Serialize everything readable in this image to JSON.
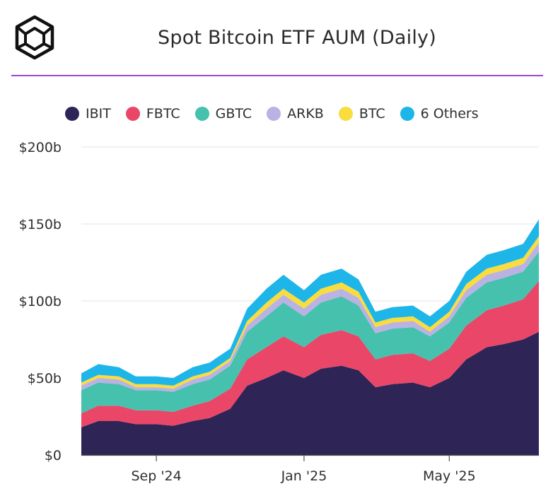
{
  "header": {
    "title": "Spot Bitcoin ETF AUM (Daily)",
    "logo_icon": "cube-logo-icon",
    "rule_color": "#9b45d6"
  },
  "chart_data": {
    "type": "area",
    "stacked": true,
    "title": "Spot Bitcoin ETF AUM (Daily)",
    "legend_position": "top",
    "grid": true,
    "ylim": [
      0,
      200
    ],
    "y_ticks": [
      {
        "value": 0,
        "label": "$0"
      },
      {
        "value": 50,
        "label": "$50b"
      },
      {
        "value": 100,
        "label": "$100b"
      },
      {
        "value": 150,
        "label": "$150b"
      },
      {
        "value": 200,
        "label": "$200b"
      }
    ],
    "x_range": [
      "2024-07-01",
      "2025-07-14"
    ],
    "x_ticks": [
      {
        "date": "2024-09-01",
        "label": "Sep '24"
      },
      {
        "date": "2025-01-01",
        "label": "Jan '25"
      },
      {
        "date": "2025-05-01",
        "label": "May '25"
      }
    ],
    "x": [
      "2024-07-01",
      "2024-07-15",
      "2024-08-01",
      "2024-08-15",
      "2024-09-01",
      "2024-09-15",
      "2024-10-01",
      "2024-10-15",
      "2024-11-01",
      "2024-11-15",
      "2024-12-01",
      "2024-12-15",
      "2025-01-01",
      "2025-01-15",
      "2025-02-01",
      "2025-02-15",
      "2025-03-01",
      "2025-03-15",
      "2025-04-01",
      "2025-04-15",
      "2025-05-01",
      "2025-05-15",
      "2025-06-01",
      "2025-06-15",
      "2025-07-01",
      "2025-07-14"
    ],
    "series": [
      {
        "name": "IBIT",
        "color": "#2e2556",
        "values": [
          18,
          22,
          22,
          20,
          20,
          19,
          22,
          24,
          30,
          45,
          50,
          55,
          50,
          56,
          58,
          55,
          44,
          46,
          47,
          44,
          50,
          62,
          70,
          72,
          75,
          80
        ]
      },
      {
        "name": "FBTC",
        "color": "#ea4668",
        "values": [
          9,
          10,
          10,
          9,
          9,
          9,
          10,
          11,
          13,
          17,
          20,
          22,
          20,
          22,
          23,
          22,
          18,
          19,
          19,
          17,
          19,
          22,
          24,
          25,
          26,
          33
        ]
      },
      {
        "name": "GBTC",
        "color": "#45c1ad",
        "values": [
          15,
          15,
          14,
          13,
          13,
          13,
          14,
          14,
          15,
          18,
          20,
          22,
          20,
          21,
          22,
          20,
          17,
          17,
          17,
          16,
          17,
          18,
          18,
          18,
          18,
          19
        ]
      },
      {
        "name": "ARKB",
        "color": "#b9b2e2",
        "values": [
          3,
          3,
          3,
          2,
          2,
          2,
          3,
          3,
          3,
          4,
          5,
          5,
          5,
          5,
          5,
          5,
          4,
          4,
          4,
          3,
          4,
          5,
          5,
          5,
          5,
          6
        ]
      },
      {
        "name": "BTC",
        "color": "#f9dc3e",
        "values": [
          2,
          2,
          2,
          2,
          2,
          2,
          2,
          2,
          2,
          3,
          4,
          4,
          4,
          4,
          4,
          4,
          3,
          3,
          3,
          3,
          3,
          4,
          4,
          4,
          4,
          4
        ]
      },
      {
        "name": "6 Others",
        "color": "#1eb6e8",
        "values": [
          6,
          7,
          6,
          5,
          5,
          5,
          6,
          6,
          6,
          8,
          9,
          9,
          8,
          9,
          9,
          8,
          7,
          7,
          7,
          7,
          7,
          8,
          9,
          9,
          9,
          11
        ]
      }
    ]
  }
}
